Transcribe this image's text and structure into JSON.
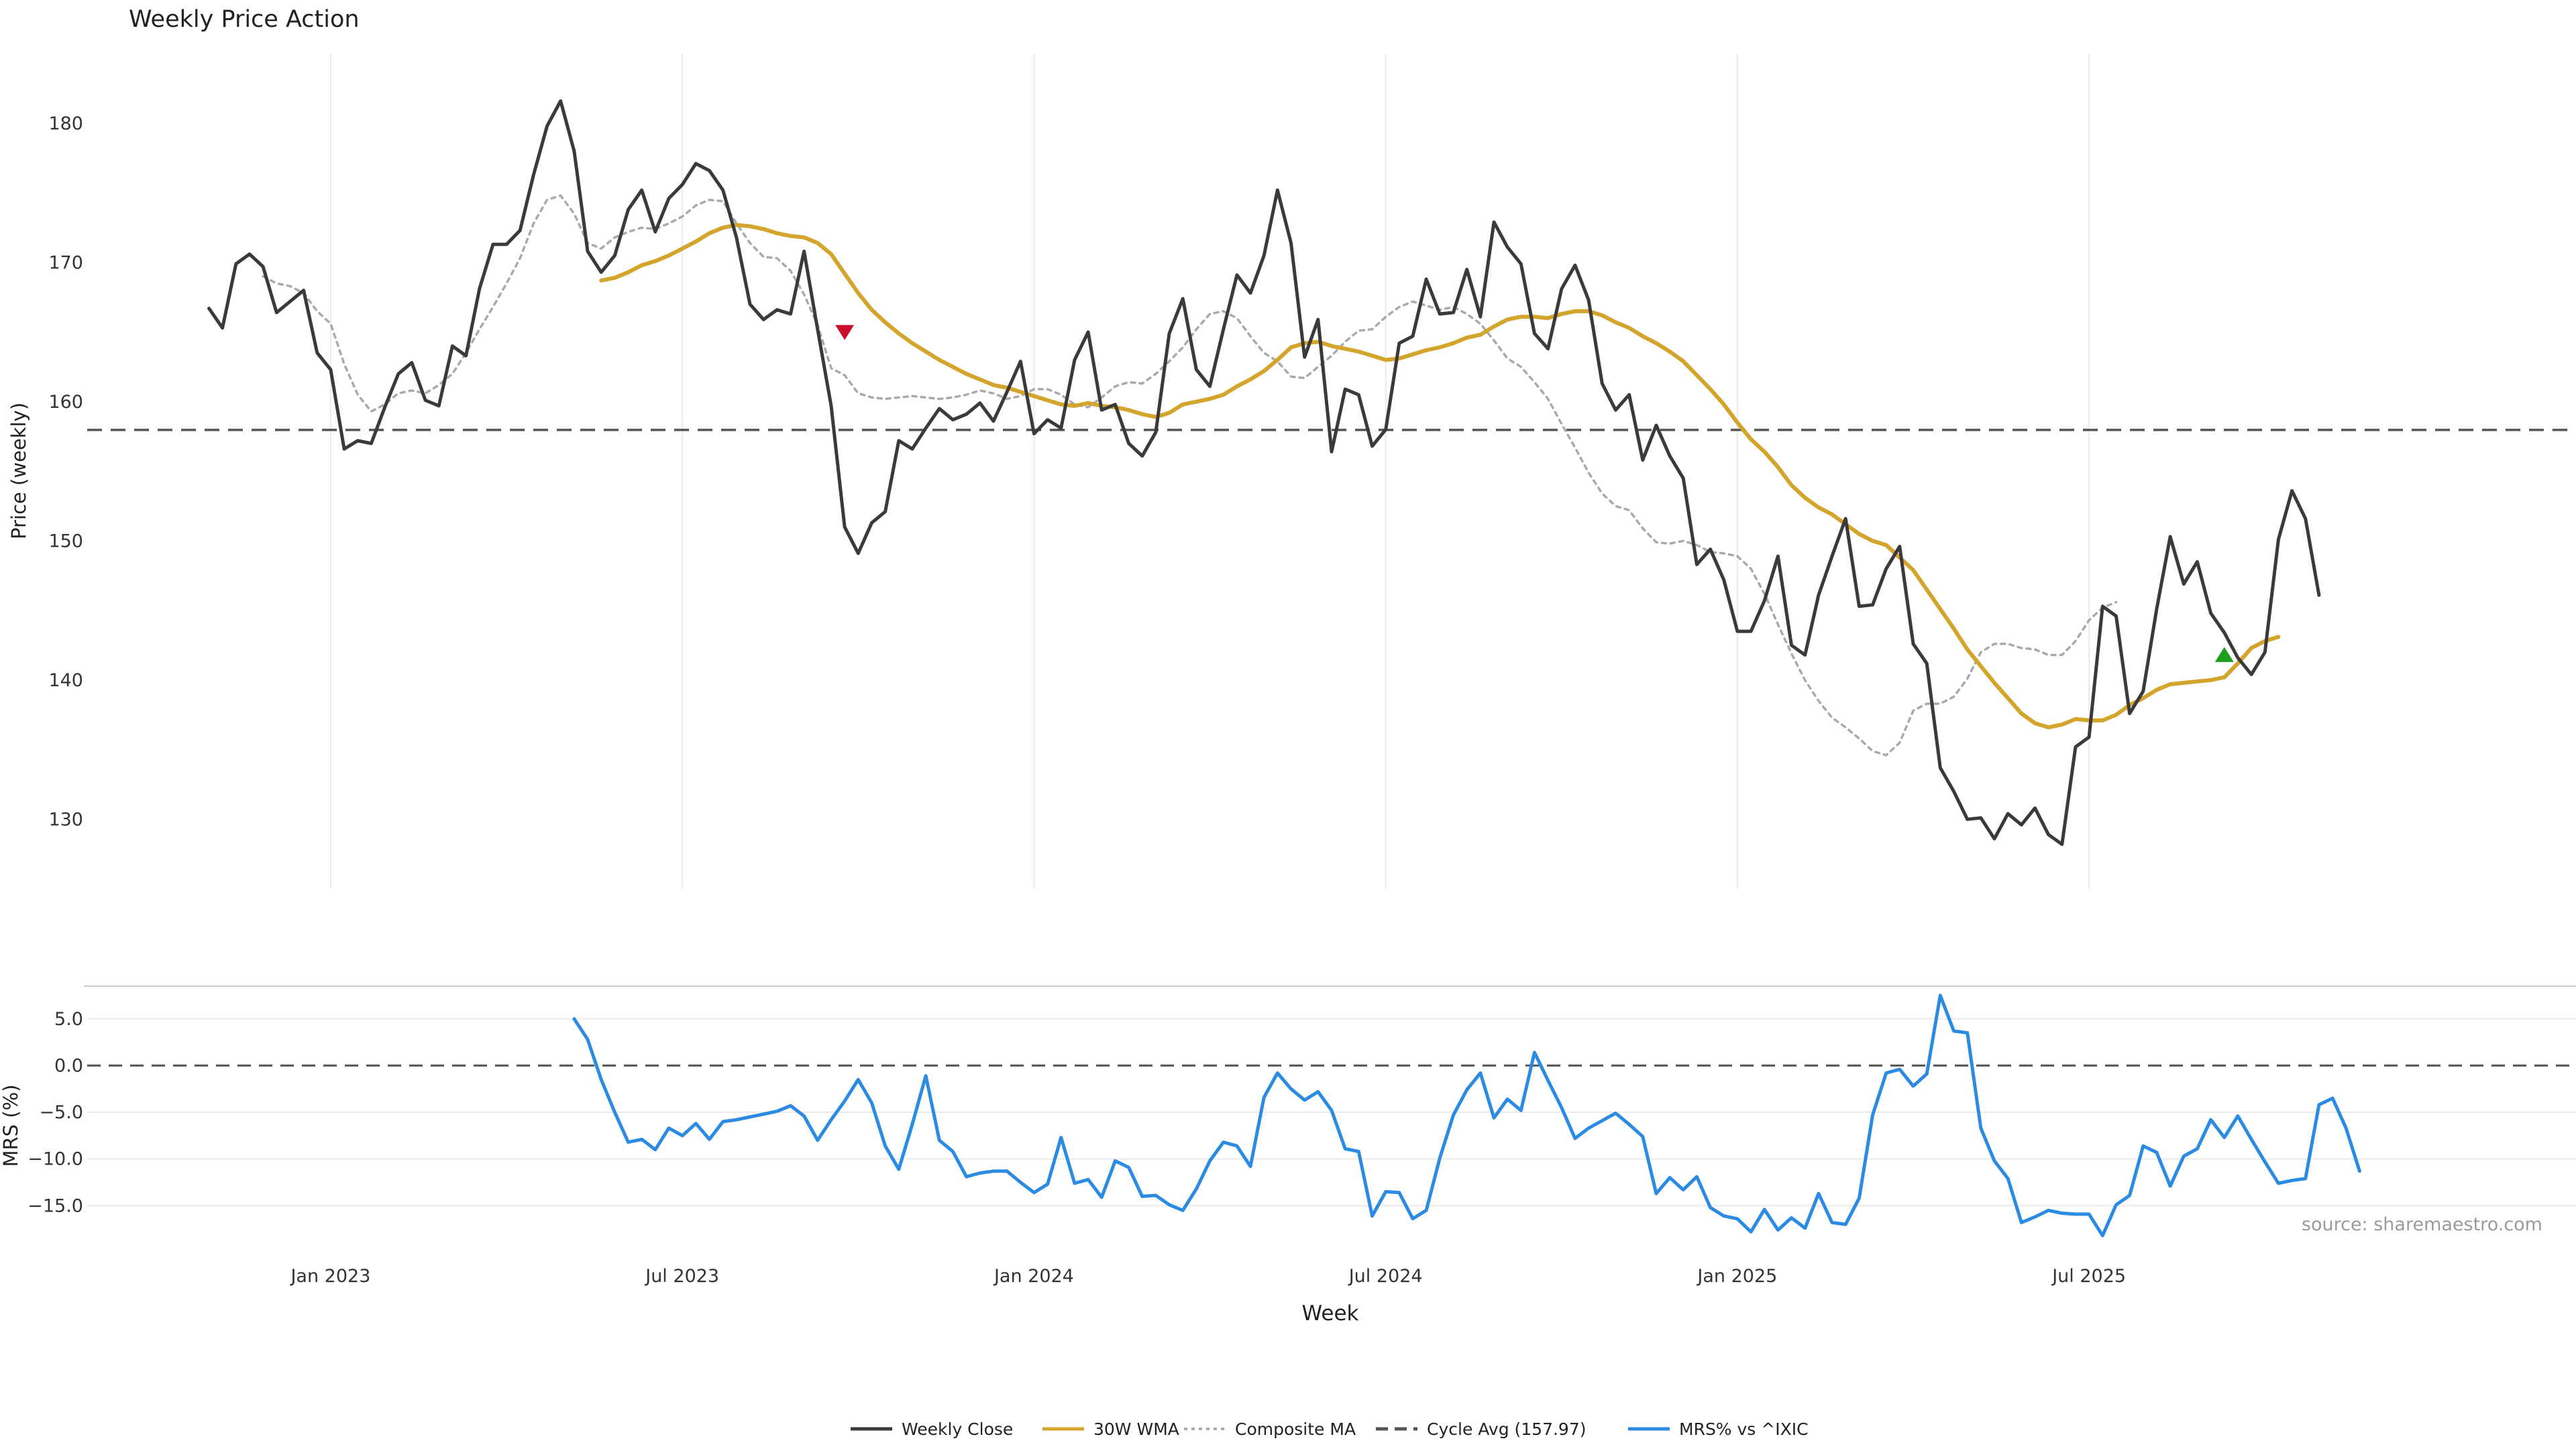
{
  "colors": {
    "close": "#3a3a3a",
    "wma": "#d4a52c",
    "composite": "#aaaaaa",
    "cycle": "#555555",
    "mrs": "#2b8ae2",
    "sell_marker": "#c8102e",
    "buy_marker": "#1f9d1f",
    "grid": "#ebebeb",
    "axis_text": "#333333",
    "source_text": "#9a9a9a"
  },
  "chart_data": [
    {
      "type": "line",
      "title": "Weekly Price Action",
      "xlabel": "",
      "ylabel": "Price (weekly)",
      "ylim": [
        125,
        185
      ],
      "yticks": [
        130,
        140,
        150,
        160,
        170,
        180
      ],
      "x_range": [
        -9,
        175
      ],
      "cycle_avg": 157.97,
      "series": [
        {
          "name": "Weekly Close",
          "start": 0,
          "values": [
            166.7,
            165.3,
            169.9,
            170.6,
            169.7,
            166.4,
            167.2,
            168.0,
            163.5,
            162.3,
            156.6,
            157.2,
            157.0,
            159.6,
            162.0,
            162.8,
            160.1,
            159.7,
            164.0,
            163.3,
            168.1,
            171.3,
            171.3,
            172.3,
            176.3,
            179.8,
            181.6,
            178.0,
            170.8,
            169.3,
            170.5,
            173.8,
            175.2,
            172.2,
            174.6,
            175.6,
            177.1,
            176.6,
            175.2,
            171.8,
            167.0,
            165.9,
            166.6,
            166.3,
            170.8,
            165.2,
            159.7,
            151.0,
            149.1,
            151.3,
            152.1,
            157.2,
            156.6,
            158.1,
            159.5,
            158.7,
            159.1,
            159.9,
            158.6,
            160.7,
            162.9,
            157.7,
            158.7,
            158.1,
            163.0,
            165.0,
            159.4,
            159.8,
            157.0,
            156.1,
            157.8,
            164.9,
            167.4,
            162.3,
            161.1,
            165.2,
            169.1,
            167.8,
            170.5,
            175.2,
            171.4,
            163.2,
            165.9,
            156.4,
            160.9,
            160.5,
            156.8,
            158.0,
            164.2,
            164.7,
            168.8,
            166.3,
            166.4,
            169.5,
            166.1,
            172.9,
            171.1,
            169.9,
            164.9,
            163.8,
            168.1,
            169.8,
            167.3,
            161.3,
            159.4,
            160.5,
            155.8,
            158.3,
            156.1,
            154.5,
            148.3,
            149.4,
            147.2,
            143.5,
            143.5,
            145.7,
            148.9,
            142.5,
            141.8,
            146.1,
            148.9,
            151.6,
            145.3,
            145.4,
            148.0,
            149.6,
            142.6,
            141.2,
            133.7,
            132.0,
            130.0,
            130.1,
            128.6,
            130.4,
            129.6,
            130.8,
            128.9,
            128.2,
            135.2,
            135.9,
            145.3,
            144.6,
            137.6,
            139.2,
            145.1,
            150.3,
            146.9,
            148.5,
            144.8,
            143.4,
            141.6,
            140.4,
            142.0,
            150.1,
            153.6,
            151.6,
            146.1
          ]
        },
        {
          "name": "30W WMA",
          "start": 29,
          "values": [
            168.7,
            168.9,
            169.3,
            169.8,
            170.1,
            170.5,
            171.0,
            171.5,
            172.1,
            172.5,
            172.7,
            172.6,
            172.4,
            172.1,
            171.9,
            171.8,
            171.4,
            170.6,
            169.2,
            167.8,
            166.6,
            165.7,
            164.9,
            164.2,
            163.6,
            163.0,
            162.5,
            162.0,
            161.6,
            161.2,
            161.0,
            160.7,
            160.4,
            160.1,
            159.8,
            159.7,
            159.9,
            159.7,
            159.6,
            159.4,
            159.1,
            158.9,
            159.2,
            159.8,
            160.0,
            160.2,
            160.5,
            161.1,
            161.6,
            162.2,
            163.0,
            163.9,
            164.2,
            164.3,
            164.0,
            163.8,
            163.6,
            163.3,
            163.0,
            163.1,
            163.4,
            163.7,
            163.9,
            164.2,
            164.6,
            164.8,
            165.4,
            165.9,
            166.1,
            166.1,
            166.0,
            166.3,
            166.5,
            166.5,
            166.2,
            165.7,
            165.3,
            164.7,
            164.2,
            163.6,
            162.9,
            161.9,
            160.9,
            159.8,
            158.5,
            157.3,
            156.4,
            155.3,
            154.0,
            153.1,
            152.4,
            151.9,
            151.2,
            150.5,
            150.0,
            149.7,
            148.8,
            147.9,
            146.5,
            145.1,
            143.7,
            142.2,
            141.0,
            139.8,
            138.7,
            137.6,
            136.9,
            136.6,
            136.8,
            137.2,
            137.1,
            137.1,
            137.5,
            138.2,
            138.7,
            139.3,
            139.7,
            139.8,
            139.9,
            140.0,
            140.2,
            141.2,
            142.3,
            142.8,
            143.1
          ]
        },
        {
          "name": "Composite MA",
          "start": 4,
          "values": [
            169.0,
            168.5,
            168.3,
            167.8,
            166.5,
            165.6,
            162.7,
            160.5,
            159.3,
            159.8,
            160.6,
            160.8,
            160.6,
            161.2,
            162.0,
            163.5,
            165.2,
            166.8,
            168.5,
            170.3,
            172.8,
            174.5,
            174.8,
            173.5,
            171.4,
            171.0,
            171.8,
            172.2,
            172.5,
            172.4,
            172.8,
            173.3,
            174.1,
            174.5,
            174.4,
            172.8,
            171.4,
            170.4,
            170.3,
            169.4,
            167.7,
            165.5,
            162.4,
            161.9,
            160.6,
            160.3,
            160.2,
            160.3,
            160.4,
            160.3,
            160.2,
            160.3,
            160.5,
            160.8,
            160.6,
            160.2,
            160.4,
            160.9,
            160.9,
            160.5,
            159.8,
            159.6,
            160.3,
            161.1,
            161.4,
            161.3,
            162.0,
            162.9,
            163.9,
            165.2,
            166.3,
            166.5,
            166.0,
            164.7,
            163.5,
            162.9,
            161.8,
            161.7,
            162.5,
            163.3,
            164.3,
            165.1,
            165.2,
            166.1,
            166.8,
            167.2,
            166.9,
            166.6,
            166.8,
            166.3,
            165.6,
            164.4,
            163.1,
            162.5,
            161.4,
            160.2,
            158.4,
            156.7,
            154.9,
            153.4,
            152.5,
            152.2,
            150.9,
            149.9,
            149.8,
            150.0,
            149.7,
            149.2,
            149.1,
            148.9,
            148.0,
            146.2,
            144.0,
            141.9,
            140.0,
            138.5,
            137.3,
            136.6,
            135.8,
            134.9,
            134.6,
            135.5,
            137.8,
            138.3,
            138.3,
            138.8,
            140.1,
            142.0,
            142.6,
            142.6,
            142.3,
            142.2,
            141.8,
            141.8,
            142.8,
            144.3,
            145.2,
            145.6
          ]
        }
      ],
      "markers": [
        {
          "type": "sell",
          "x": 47,
          "y": 165.0
        },
        {
          "type": "buy",
          "x": 149,
          "y": 141.8
        }
      ]
    },
    {
      "type": "line",
      "title": "",
      "xlabel": "Week",
      "ylabel": "MRS (%)",
      "ylim": [
        -19.5,
        8.5
      ],
      "yticks": [
        5.0,
        0.0,
        -5.0,
        -10.0,
        -15.0
      ],
      "ytick_labels": [
        "5.0",
        "0.0",
        "−5.0",
        "−10.0",
        "−15.0"
      ],
      "x_range": [
        -9,
        175
      ],
      "xticks": [
        {
          "label": "Jan 2023",
          "x": 9
        },
        {
          "label": "Jul 2023",
          "x": 35
        },
        {
          "label": "Jan 2024",
          "x": 61
        },
        {
          "label": "Jul 2024",
          "x": 87
        },
        {
          "label": "Jan 2025",
          "x": 113
        },
        {
          "label": "Jul 2025",
          "x": 139
        }
      ],
      "zero_line": 0,
      "series": [
        {
          "name": "MRS% vs ^IXIC",
          "start": 27,
          "values": [
            5.0,
            2.8,
            -1.5,
            -5.0,
            -8.2,
            -7.9,
            -9.0,
            -6.7,
            -7.5,
            -6.2,
            -7.9,
            -6.0,
            -5.8,
            -5.5,
            -5.2,
            -4.9,
            -4.3,
            -5.4,
            -8.0,
            -5.8,
            -3.8,
            -1.5,
            -4.0,
            -8.6,
            -11.1,
            -6.3,
            -1.1,
            -8.0,
            -9.2,
            -11.9,
            -11.5,
            -11.3,
            -11.3,
            -12.5,
            -13.6,
            -12.7,
            -7.7,
            -12.6,
            -12.2,
            -14.1,
            -10.2,
            -10.9,
            -14.0,
            -13.9,
            -14.9,
            -15.5,
            -13.2,
            -10.2,
            -8.2,
            -8.6,
            -10.8,
            -3.4,
            -0.8,
            -2.5,
            -3.7,
            -2.8,
            -4.8,
            -8.9,
            -9.2,
            -16.1,
            -13.5,
            -13.6,
            -16.4,
            -15.5,
            -9.9,
            -5.3,
            -2.6,
            -0.8,
            -5.6,
            -3.6,
            -4.8,
            1.4,
            -1.6,
            -4.5,
            -7.8,
            -6.7,
            -5.9,
            -5.1,
            -6.3,
            -7.6,
            -13.7,
            -12.0,
            -13.3,
            -11.9,
            -15.2,
            -16.1,
            -16.4,
            -17.8,
            -15.4,
            -17.6,
            -16.3,
            -17.4,
            -13.7,
            -16.8,
            -17.0,
            -14.2,
            -5.3,
            -0.8,
            -0.4,
            -2.2,
            -0.9,
            7.5,
            3.7,
            3.5,
            -6.7,
            -10.2,
            -12.1,
            -16.8,
            -16.2,
            -15.5,
            -15.8,
            -15.9,
            -15.9,
            -18.2,
            -14.9,
            -13.9,
            -8.6,
            -9.3,
            -12.9,
            -9.7,
            -8.9,
            -5.8,
            -7.7,
            -5.4,
            -7.9,
            -10.3,
            -12.6,
            -12.3,
            -12.1,
            -4.2,
            -3.5,
            -6.7,
            -11.3
          ]
        }
      ],
      "annotation": "source: sharemaestro.com"
    }
  ],
  "legend": {
    "position": "bottom-center",
    "items": [
      {
        "label": "Weekly Close",
        "style": "solid",
        "color_key": "close"
      },
      {
        "label": "30W WMA",
        "style": "solid",
        "color_key": "wma"
      },
      {
        "label": "Composite MA",
        "style": "dotted",
        "color_key": "composite"
      },
      {
        "label": "Cycle Avg (157.97)",
        "style": "dashed",
        "color_key": "cycle"
      },
      {
        "label": "MRS% vs ^IXIC",
        "style": "solid",
        "color_key": "mrs"
      }
    ]
  }
}
